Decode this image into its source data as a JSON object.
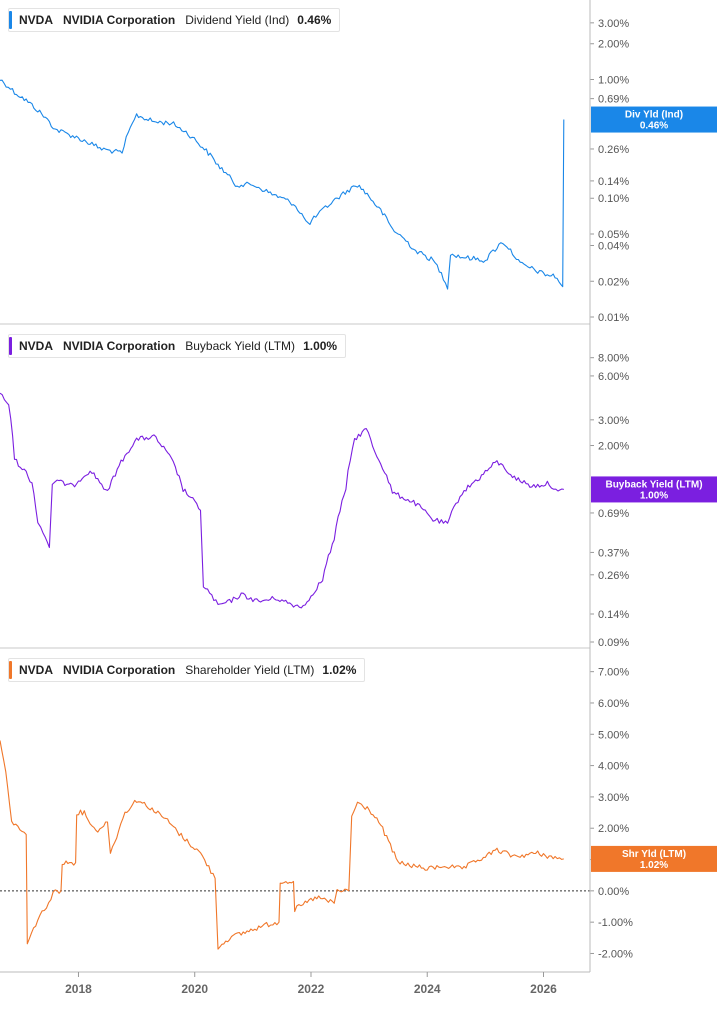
{
  "chart_data": [
    {
      "type": "line",
      "legend": {
        "ticker": "NVDA",
        "company": "NVIDIA Corporation",
        "metric": "Dividend Yield (Ind)",
        "value": "0.46%"
      },
      "end_label": {
        "line1": "Div Yld (Ind)",
        "line2": "0.46%"
      },
      "color": "#1a87e8",
      "y_scale": "log",
      "ylim": [
        0.01,
        4.0
      ],
      "y_ticks": [
        0.01,
        0.02,
        0.04,
        0.05,
        0.1,
        0.14,
        0.26,
        0.69,
        1.0,
        2.0,
        3.0
      ],
      "y_tick_labels": [
        "0.01%",
        "0.02%",
        "0.04%",
        "0.05%",
        "0.10%",
        "0.14%",
        "0.26%",
        "0.69%",
        "1.00%",
        "2.00%",
        "3.00%"
      ],
      "x": [
        2016.65,
        2016.9,
        2017.3,
        2017.6,
        2018.0,
        2018.4,
        2018.75,
        2019.0,
        2019.3,
        2019.6,
        2019.85,
        2020.1,
        2020.4,
        2020.7,
        2021.0,
        2021.3,
        2021.7,
        2021.95,
        2022.15,
        2022.45,
        2022.8,
        2023.1,
        2023.4,
        2023.8,
        2024.1,
        2024.35,
        2024.4,
        2024.6,
        2025.0,
        2025.3,
        2025.6,
        2026.0,
        2026.2,
        2026.3,
        2026.33,
        2026.35
      ],
      "y": [
        1.0,
        0.78,
        0.55,
        0.38,
        0.32,
        0.26,
        0.24,
        0.5,
        0.44,
        0.43,
        0.36,
        0.28,
        0.19,
        0.13,
        0.13,
        0.11,
        0.09,
        0.06,
        0.075,
        0.1,
        0.13,
        0.09,
        0.055,
        0.036,
        0.03,
        0.018,
        0.034,
        0.032,
        0.03,
        0.043,
        0.028,
        0.023,
        0.022,
        0.019,
        0.018,
        0.46
      ]
    },
    {
      "type": "line",
      "legend": {
        "ticker": "NVDA",
        "company": "NVIDIA Corporation",
        "metric": "Buyback Yield (LTM)",
        "value": "1.00%"
      },
      "end_label": {
        "line1": "Buyback Yield (LTM)",
        "line2": "1.00%"
      },
      "color": "#7b1fe0",
      "y_scale": "log",
      "ylim": [
        0.09,
        12.0
      ],
      "y_ticks": [
        0.09,
        0.14,
        0.26,
        0.37,
        0.69,
        2.0,
        3.0,
        6.0,
        8.0
      ],
      "y_tick_labels": [
        "0.09%",
        "0.14%",
        "0.26%",
        "0.37%",
        "0.69%",
        "2.00%",
        "3.00%",
        "6.00%",
        "8.00%"
      ],
      "x": [
        2016.65,
        2016.8,
        2016.9,
        2017.1,
        2017.2,
        2017.3,
        2017.35,
        2017.5,
        2017.55,
        2017.6,
        2017.9,
        2018.2,
        2018.5,
        2018.8,
        2019.0,
        2019.3,
        2019.6,
        2019.8,
        2020.1,
        2020.15,
        2020.4,
        2020.6,
        2020.8,
        2021.1,
        2021.4,
        2021.7,
        2021.9,
        2022.2,
        2022.4,
        2022.6,
        2022.75,
        2022.95,
        2023.1,
        2023.4,
        2023.8,
        2024.1,
        2024.35,
        2024.6,
        2024.9,
        2025.2,
        2025.5,
        2025.8,
        2026.1,
        2026.25,
        2026.35
      ],
      "y": [
        4.5,
        3.8,
        1.6,
        1.3,
        1.1,
        0.6,
        0.55,
        0.4,
        1.1,
        1.15,
        1.05,
        1.35,
        0.95,
        1.7,
        2.2,
        2.3,
        1.6,
        1.0,
        0.72,
        0.22,
        0.16,
        0.17,
        0.19,
        0.17,
        0.18,
        0.16,
        0.16,
        0.24,
        0.45,
        1.0,
        2.2,
        2.6,
        1.8,
        0.95,
        0.8,
        0.62,
        0.58,
        0.95,
        1.2,
        1.55,
        1.2,
        1.05,
        1.1,
        0.95,
        1.0
      ]
    },
    {
      "type": "line",
      "legend": {
        "ticker": "NVDA",
        "company": "NVIDIA Corporation",
        "metric": "Shareholder Yield (LTM)",
        "value": "1.02%"
      },
      "end_label": {
        "line1": "Shr Yld (LTM)",
        "line2": "1.02%"
      },
      "color": "#f0772a",
      "y_scale": "linear",
      "ylim": [
        -2.4,
        7.5
      ],
      "zero_line": true,
      "y_ticks": [
        -2,
        -1,
        0,
        1,
        2,
        3,
        4,
        5,
        6,
        7
      ],
      "y_tick_labels": [
        "-2.00%",
        "-1.00%",
        "0.00%",
        "1.00%",
        "2.00%",
        "3.00%",
        "4.00%",
        "5.00%",
        "6.00%",
        "7.00%"
      ],
      "x": [
        2016.65,
        2016.75,
        2016.85,
        2017.1,
        2017.12,
        2017.3,
        2017.45,
        2017.6,
        2017.7,
        2017.72,
        2017.95,
        2017.97,
        2018.1,
        2018.3,
        2018.5,
        2018.55,
        2018.8,
        2019.0,
        2019.2,
        2019.5,
        2019.8,
        2020.1,
        2020.35,
        2020.4,
        2020.6,
        2020.9,
        2021.2,
        2021.45,
        2021.47,
        2021.7,
        2021.72,
        2021.9,
        2022.1,
        2022.4,
        2022.45,
        2022.65,
        2022.7,
        2022.8,
        2023.0,
        2023.2,
        2023.5,
        2024.0,
        2024.3,
        2024.6,
        2024.9,
        2025.2,
        2025.5,
        2025.9,
        2026.2,
        2026.35
      ],
      "y": [
        4.8,
        3.8,
        2.2,
        1.8,
        -1.7,
        -0.9,
        -0.5,
        0.0,
        0.0,
        0.9,
        0.9,
        2.5,
        2.5,
        1.9,
        2.2,
        1.2,
        2.5,
        2.9,
        2.7,
        2.3,
        1.7,
        1.2,
        0.4,
        -1.8,
        -1.5,
        -1.3,
        -1.1,
        -1.0,
        0.3,
        0.3,
        -0.6,
        -0.4,
        -0.2,
        -0.4,
        0.0,
        0.0,
        2.4,
        2.8,
        2.6,
        2.1,
        0.9,
        0.7,
        0.8,
        0.7,
        1.0,
        1.3,
        1.1,
        1.2,
        1.05,
        1.02
      ]
    }
  ],
  "x_axis": {
    "ticks": [
      2018,
      2020,
      2022,
      2024,
      2026
    ],
    "tick_labels": [
      "2018",
      "2020",
      "2022",
      "2024",
      "2026"
    ],
    "xlim": [
      2016.65,
      2026.8
    ]
  }
}
